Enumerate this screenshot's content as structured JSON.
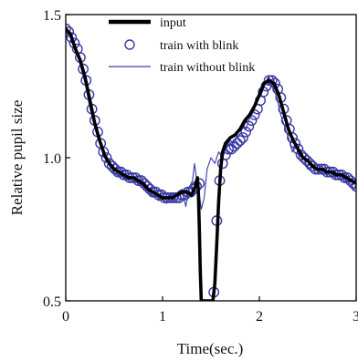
{
  "chart_data": {
    "type": "line",
    "title": "",
    "xlabel": "Time(sec.)",
    "ylabel": "Relative pupil size",
    "xlim": [
      0,
      3
    ],
    "ylim": [
      0.5,
      1.5
    ],
    "x_ticks": [
      0,
      1,
      2,
      3
    ],
    "x_tick_labels": [
      "0",
      "1",
      "2",
      "3"
    ],
    "y_ticks": [
      0.5,
      1.0,
      1.5
    ],
    "y_tick_labels": [
      "0.5",
      "1.0",
      "1.5"
    ],
    "grid": false,
    "legend_position": "top-center",
    "colors": {
      "input": "#000000",
      "blink": "#3a3aa8",
      "noblink": "#3a3aa8"
    },
    "series": [
      {
        "name": "input",
        "style": "thick-line",
        "x": [
          0.0,
          0.05,
          0.1,
          0.15,
          0.2,
          0.25,
          0.3,
          0.35,
          0.4,
          0.45,
          0.5,
          0.55,
          0.6,
          0.65,
          0.7,
          0.75,
          0.8,
          0.85,
          0.9,
          0.95,
          1.0,
          1.05,
          1.1,
          1.15,
          1.2,
          1.25,
          1.3,
          1.34,
          1.36,
          1.37,
          1.38,
          1.39,
          1.4,
          1.45,
          1.5,
          1.52,
          1.54,
          1.56,
          1.58,
          1.6,
          1.62,
          1.65,
          1.7,
          1.75,
          1.8,
          1.85,
          1.9,
          1.95,
          2.0,
          2.05,
          2.1,
          2.15,
          2.2,
          2.25,
          2.3,
          2.35,
          2.4,
          2.45,
          2.5,
          2.55,
          2.6,
          2.65,
          2.7,
          2.75,
          2.8,
          2.85,
          2.9,
          2.95,
          3.0
        ],
        "y": [
          1.45,
          1.43,
          1.38,
          1.34,
          1.28,
          1.2,
          1.12,
          1.06,
          1.01,
          0.98,
          0.96,
          0.95,
          0.94,
          0.93,
          0.93,
          0.92,
          0.91,
          0.89,
          0.88,
          0.87,
          0.86,
          0.86,
          0.86,
          0.87,
          0.88,
          0.88,
          0.87,
          0.9,
          0.93,
          0.88,
          0.75,
          0.6,
          0.5,
          0.5,
          0.5,
          0.5,
          0.56,
          0.7,
          0.85,
          0.96,
          1.02,
          1.05,
          1.07,
          1.08,
          1.1,
          1.13,
          1.15,
          1.18,
          1.22,
          1.26,
          1.27,
          1.26,
          1.22,
          1.16,
          1.1,
          1.06,
          1.03,
          1.0,
          0.99,
          0.97,
          0.96,
          0.96,
          0.95,
          0.95,
          0.94,
          0.94,
          0.93,
          0.92,
          0.91
        ]
      },
      {
        "name": "train with blink",
        "style": "markers",
        "x": [
          0.0,
          0.03,
          0.06,
          0.09,
          0.12,
          0.15,
          0.18,
          0.21,
          0.24,
          0.27,
          0.3,
          0.33,
          0.36,
          0.39,
          0.42,
          0.45,
          0.48,
          0.51,
          0.54,
          0.57,
          0.6,
          0.63,
          0.66,
          0.69,
          0.72,
          0.75,
          0.78,
          0.81,
          0.84,
          0.87,
          0.9,
          0.93,
          0.96,
          0.99,
          1.02,
          1.05,
          1.08,
          1.11,
          1.14,
          1.17,
          1.2,
          1.23,
          1.26,
          1.29,
          1.32,
          1.35,
          1.38,
          1.53,
          1.56,
          1.59,
          1.62,
          1.65,
          1.68,
          1.71,
          1.74,
          1.77,
          1.8,
          1.83,
          1.86,
          1.89,
          1.92,
          1.95,
          1.98,
          2.01,
          2.04,
          2.07,
          2.1,
          2.13,
          2.16,
          2.19,
          2.22,
          2.25,
          2.28,
          2.31,
          2.34,
          2.37,
          2.4,
          2.43,
          2.46,
          2.49,
          2.52,
          2.55,
          2.58,
          2.61,
          2.64,
          2.67,
          2.7,
          2.73,
          2.76,
          2.79,
          2.82,
          2.85,
          2.88,
          2.91,
          2.94,
          2.97,
          3.0
        ],
        "y": [
          1.45,
          1.44,
          1.42,
          1.4,
          1.38,
          1.35,
          1.31,
          1.27,
          1.22,
          1.17,
          1.13,
          1.09,
          1.05,
          1.02,
          1.0,
          0.98,
          0.97,
          0.96,
          0.95,
          0.95,
          0.94,
          0.94,
          0.93,
          0.93,
          0.93,
          0.92,
          0.92,
          0.91,
          0.9,
          0.89,
          0.88,
          0.88,
          0.87,
          0.87,
          0.86,
          0.86,
          0.86,
          0.86,
          0.86,
          0.86,
          0.87,
          0.87,
          0.88,
          0.88,
          0.89,
          0.9,
          0.91,
          0.53,
          0.78,
          0.92,
          0.98,
          1.01,
          1.03,
          1.03,
          1.04,
          1.05,
          1.06,
          1.07,
          1.09,
          1.11,
          1.13,
          1.15,
          1.17,
          1.2,
          1.23,
          1.25,
          1.27,
          1.27,
          1.26,
          1.24,
          1.21,
          1.17,
          1.13,
          1.1,
          1.07,
          1.05,
          1.03,
          1.01,
          1.0,
          0.99,
          0.98,
          0.97,
          0.96,
          0.96,
          0.96,
          0.96,
          0.95,
          0.95,
          0.95,
          0.94,
          0.94,
          0.94,
          0.93,
          0.93,
          0.92,
          0.91,
          0.9
        ]
      },
      {
        "name": "train without blink",
        "style": "thin-line",
        "x": [
          0.0,
          0.04,
          0.08,
          0.12,
          0.16,
          0.2,
          0.24,
          0.28,
          0.32,
          0.36,
          0.4,
          0.44,
          0.48,
          0.52,
          0.56,
          0.6,
          0.64,
          0.68,
          0.72,
          0.76,
          0.8,
          0.84,
          0.88,
          0.92,
          0.96,
          1.0,
          1.04,
          1.08,
          1.12,
          1.16,
          1.2,
          1.24,
          1.28,
          1.31,
          1.33,
          1.35,
          1.37,
          1.4,
          1.43,
          1.46,
          1.5,
          1.54,
          1.58,
          1.62,
          1.66,
          1.7,
          1.74,
          1.78,
          1.82,
          1.86,
          1.9,
          1.94,
          1.98,
          2.02,
          2.06,
          2.1,
          2.14,
          2.18,
          2.22,
          2.26,
          2.3,
          2.34,
          2.38,
          2.42,
          2.46,
          2.5,
          2.54,
          2.58,
          2.62,
          2.66,
          2.7,
          2.74,
          2.78,
          2.82,
          2.86,
          2.9,
          2.94,
          2.98,
          3.0
        ],
        "y": [
          1.46,
          1.43,
          1.4,
          1.36,
          1.31,
          1.26,
          1.19,
          1.13,
          1.08,
          1.04,
          1.0,
          0.98,
          0.96,
          0.94,
          0.94,
          0.93,
          0.93,
          0.92,
          0.92,
          0.91,
          0.9,
          0.89,
          0.87,
          0.86,
          0.85,
          0.86,
          0.84,
          0.87,
          0.85,
          0.86,
          0.89,
          0.83,
          0.9,
          0.92,
          0.98,
          0.93,
          0.9,
          0.82,
          0.86,
          0.96,
          1.0,
          0.98,
          1.02,
          1.0,
          1.04,
          1.06,
          1.05,
          1.09,
          1.11,
          1.1,
          1.14,
          1.16,
          1.2,
          1.22,
          1.26,
          1.28,
          1.25,
          1.21,
          1.15,
          1.11,
          1.07,
          1.02,
          1.04,
          0.99,
          1.0,
          0.96,
          0.97,
          0.96,
          0.95,
          0.96,
          0.94,
          0.95,
          0.93,
          0.94,
          0.93,
          0.92,
          0.91,
          0.89,
          0.91
        ]
      }
    ],
    "legend": [
      "input",
      "train with blink",
      "train without blink"
    ]
  }
}
